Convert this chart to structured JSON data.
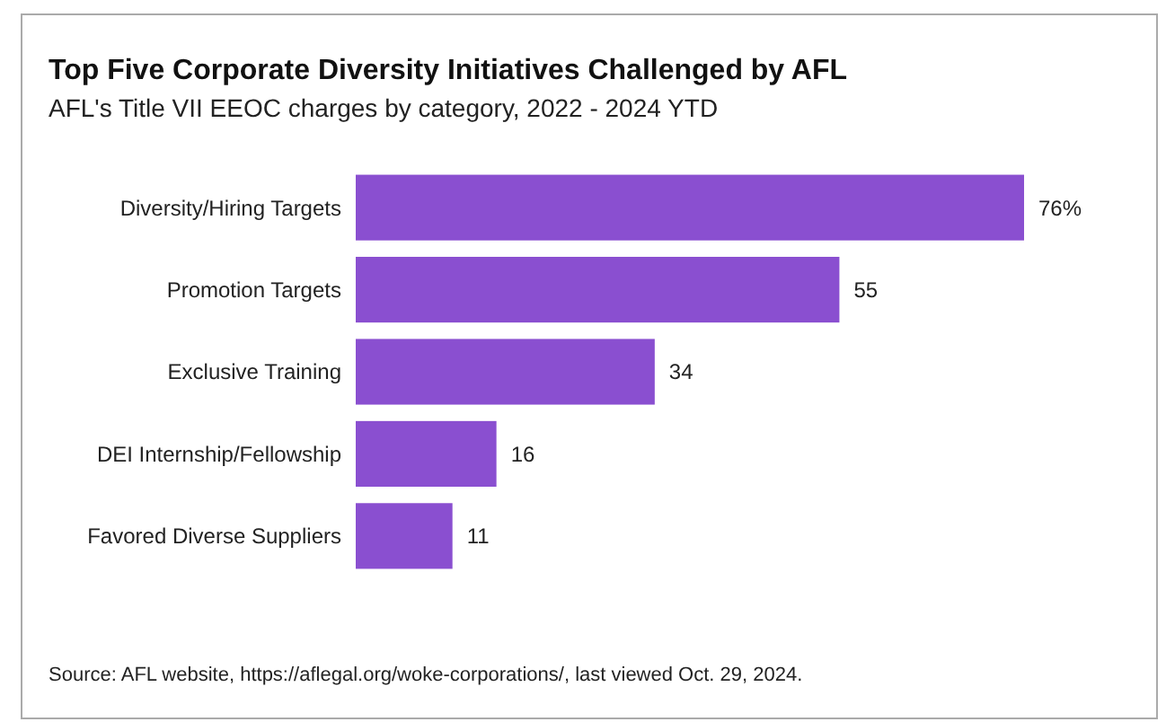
{
  "chart_data": {
    "type": "bar",
    "orientation": "horizontal",
    "title": "Top Five Corporate Diversity Initiatives Challenged by AFL",
    "subtitle": "AFL's Title VII EEOC charges by category, 2022 - 2024 YTD",
    "categories": [
      "Diversity/Hiring Targets",
      "Promotion Targets",
      "Exclusive Training",
      "DEI Internship/Fellowship",
      "Favored Diverse Suppliers"
    ],
    "values": [
      76,
      55,
      34,
      16,
      11
    ],
    "value_labels": [
      "76%",
      "55",
      "34",
      "16",
      "11"
    ],
    "color": "#8a4fd0",
    "annotations": [
      "Source: AFL website, https://aflegal.org/woke-corporations/, last viewed Oct. 29, 2024."
    ]
  }
}
